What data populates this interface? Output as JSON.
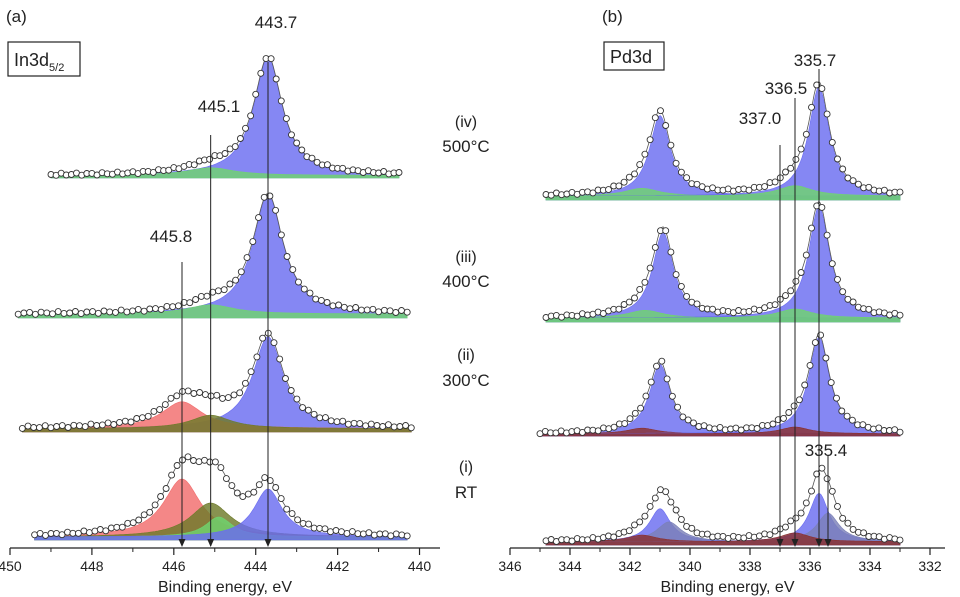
{
  "panel_labels": {
    "a": "(a)",
    "b": "(b)"
  },
  "condition_labels": [
    {
      "id": "iv",
      "line1": "(iv)",
      "line2": "500°C"
    },
    {
      "id": "iii",
      "line1": "(iii)",
      "line2": "400°C"
    },
    {
      "id": "ii",
      "line1": "(ii)",
      "line2": "300°C"
    },
    {
      "id": "i",
      "line1": "(i)",
      "line2": "RT"
    }
  ],
  "colors": {
    "blue": "#6a6cf0",
    "green": "#6fd46f",
    "red": "#f26d6d",
    "olive": "#6e7a2a",
    "tealGreen": "#3f9a72",
    "darkRed": "#8a3030",
    "greyBlue": "#7b80b8"
  },
  "chart_data": [
    {
      "type": "area",
      "title": "In3d5/2",
      "title_main": "In3d",
      "title_sub": "5/2",
      "xlabel": "Binding energy, eV",
      "xlim": [
        450,
        439.5
      ],
      "x_reversed": true,
      "xticks": [
        450,
        448,
        446,
        444,
        442,
        440
      ],
      "xtick_labels": [
        "450",
        "448",
        "446",
        "444",
        "442",
        "440"
      ],
      "annotations": [
        {
          "text": "443.7",
          "x": 443.7
        },
        {
          "text": "445.1",
          "x": 445.1
        },
        {
          "text": "445.8",
          "x": 445.8
        }
      ],
      "series": [
        {
          "condition": "(iv) 500°C",
          "xrange": [
            449.0,
            440.5
          ],
          "baseline": 0.02,
          "components": [
            {
              "color": "blue",
              "center": 443.7,
              "height": 0.92,
              "width": 0.42
            },
            {
              "color": "green",
              "center": 445.1,
              "height": 0.06,
              "width": 0.7
            }
          ]
        },
        {
          "condition": "(iii) 400°C",
          "xrange": [
            449.8,
            440.3
          ],
          "baseline": 0.03,
          "components": [
            {
              "color": "blue",
              "center": 443.7,
              "height": 0.9,
              "width": 0.45
            },
            {
              "color": "green",
              "center": 445.1,
              "height": 0.07,
              "width": 0.7
            }
          ]
        },
        {
          "condition": "(ii) 300°C",
          "xrange": [
            449.7,
            440.2
          ],
          "baseline": 0.03,
          "components": [
            {
              "color": "blue",
              "center": 443.7,
              "height": 0.82,
              "width": 0.45
            },
            {
              "color": "red",
              "center": 445.8,
              "height": 0.24,
              "width": 0.6
            },
            {
              "color": "olive",
              "center": 445.1,
              "height": 0.12,
              "width": 0.6
            }
          ]
        },
        {
          "condition": "(i) RT",
          "xrange": [
            449.4,
            440.3
          ],
          "baseline": 0.03,
          "components": [
            {
              "color": "red",
              "center": 445.8,
              "height": 0.58,
              "width": 0.55
            },
            {
              "color": "olive",
              "center": 445.1,
              "height": 0.34,
              "width": 0.6
            },
            {
              "color": "green",
              "center": 444.9,
              "height": 0.2,
              "width": 0.4
            },
            {
              "color": "blue",
              "center": 443.7,
              "height": 0.48,
              "width": 0.42
            }
          ]
        }
      ]
    },
    {
      "type": "area",
      "title": "Pd3d",
      "xlabel": "Binding energy, eV",
      "xlim": [
        346,
        331.5
      ],
      "x_reversed": true,
      "xticks": [
        346,
        344,
        342,
        340,
        338,
        336,
        334,
        332
      ],
      "xtick_labels": [
        "346",
        "344",
        "342",
        "340",
        "338",
        "336",
        "334",
        "332"
      ],
      "annotations": [
        {
          "text": "335.7",
          "x": 335.7
        },
        {
          "text": "336.5",
          "x": 336.5
        },
        {
          "text": "337.0",
          "x": 337.0
        },
        {
          "text": "335.4",
          "x": 335.4
        }
      ],
      "series": [
        {
          "condition": "(iv) 500°C",
          "xrange": [
            344.8,
            333.0
          ],
          "baseline": 0.03,
          "components": [
            {
              "color": "blue",
              "center": 341.0,
              "height": 0.62,
              "width": 0.42
            },
            {
              "color": "green",
              "center": 341.6,
              "height": 0.06,
              "width": 0.7
            },
            {
              "color": "blue",
              "center": 335.7,
              "height": 0.84,
              "width": 0.42
            },
            {
              "color": "green",
              "center": 336.5,
              "height": 0.08,
              "width": 0.7
            }
          ]
        },
        {
          "condition": "(iii) 400°C",
          "xrange": [
            344.8,
            333.0
          ],
          "baseline": 0.03,
          "components": [
            {
              "color": "blue",
              "center": 340.9,
              "height": 0.66,
              "width": 0.42
            },
            {
              "color": "green",
              "center": 341.5,
              "height": 0.06,
              "width": 0.7
            },
            {
              "color": "blue",
              "center": 335.7,
              "height": 0.86,
              "width": 0.42
            },
            {
              "color": "green",
              "center": 336.5,
              "height": 0.07,
              "width": 0.7
            }
          ]
        },
        {
          "condition": "(ii) 300°C",
          "xrange": [
            345.0,
            333.0
          ],
          "baseline": 0.02,
          "components": [
            {
              "color": "blue",
              "center": 341.0,
              "height": 0.62,
              "width": 0.42
            },
            {
              "color": "darkRed",
              "center": 341.6,
              "height": 0.05,
              "width": 0.6
            },
            {
              "color": "blue",
              "center": 335.7,
              "height": 0.86,
              "width": 0.42
            },
            {
              "color": "darkRed",
              "center": 336.5,
              "height": 0.06,
              "width": 0.6
            }
          ]
        },
        {
          "condition": "(i) RT",
          "xrange": [
            344.8,
            333.0
          ],
          "baseline": 0.03,
          "components": [
            {
              "color": "blue",
              "center": 341.0,
              "height": 0.3,
              "width": 0.42
            },
            {
              "color": "greyBlue",
              "center": 340.7,
              "height": 0.18,
              "width": 0.5
            },
            {
              "color": "darkRed",
              "center": 341.6,
              "height": 0.06,
              "width": 0.6
            },
            {
              "color": "blue",
              "center": 335.7,
              "height": 0.44,
              "width": 0.4
            },
            {
              "color": "greyBlue",
              "center": 335.4,
              "height": 0.26,
              "width": 0.45
            },
            {
              "color": "darkRed",
              "center": 336.5,
              "height": 0.08,
              "width": 0.6
            }
          ]
        }
      ]
    }
  ]
}
